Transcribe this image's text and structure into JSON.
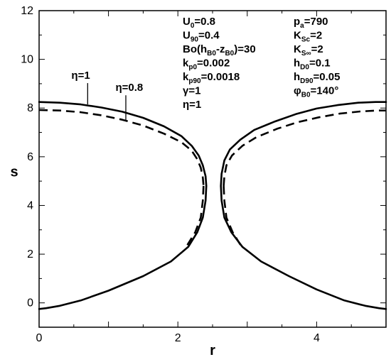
{
  "chart_data": {
    "type": "line",
    "xlabel": "r",
    "ylabel": "s",
    "xlim": [
      0,
      5
    ],
    "ylim": [
      -1,
      12
    ],
    "xticks": [
      0,
      2,
      4
    ],
    "yticks": [
      0,
      2,
      4,
      6,
      8,
      10,
      12
    ],
    "grid": false,
    "series": [
      {
        "name": "η=1",
        "style": "solid",
        "branches": [
          {
            "x": [
              0,
              0.3,
              0.6,
              0.9,
              1.2,
              1.5,
              1.8,
              2.05,
              2.2,
              2.3,
              2.36,
              2.4,
              2.41
            ],
            "y": [
              8.25,
              8.22,
              8.15,
              8.02,
              7.85,
              7.6,
              7.25,
              6.85,
              6.45,
              6.05,
              5.65,
              5.2,
              4.8
            ]
          },
          {
            "x": [
              2.41,
              2.4,
              2.36,
              2.28,
              2.15,
              1.9,
              1.5,
              1.0,
              0.6,
              0.3,
              0.1,
              0
            ],
            "y": [
              4.8,
              4.2,
              3.5,
              2.9,
              2.3,
              1.7,
              1.1,
              0.5,
              0.1,
              -0.12,
              -0.22,
              -0.25
            ]
          },
          {
            "x": [
              2.62,
              2.63,
              2.67,
              2.75,
              2.9,
              3.1,
              3.4,
              3.7,
              4.0,
              4.3,
              4.6,
              4.85,
              5.0
            ],
            "y": [
              4.8,
              5.3,
              5.85,
              6.3,
              6.7,
              7.1,
              7.45,
              7.75,
              7.98,
              8.12,
              8.22,
              8.25,
              8.25
            ]
          },
          {
            "x": [
              2.62,
              2.63,
              2.67,
              2.77,
              2.93,
              3.2,
              3.6,
              4.0,
              4.4,
              4.7,
              4.9,
              5.0
            ],
            "y": [
              4.8,
              4.2,
              3.5,
              2.9,
              2.3,
              1.7,
              1.1,
              0.55,
              0.1,
              -0.12,
              -0.22,
              -0.25
            ]
          }
        ]
      },
      {
        "name": "η=0.8",
        "style": "dashed",
        "branches": [
          {
            "x": [
              0,
              0.3,
              0.6,
              0.9,
              1.2,
              1.5,
              1.8,
              2.05,
              2.2,
              2.28,
              2.33,
              2.36,
              2.37
            ],
            "y": [
              7.92,
              7.9,
              7.83,
              7.7,
              7.52,
              7.28,
              6.95,
              6.6,
              6.25,
              5.9,
              5.55,
              5.15,
              4.8
            ]
          },
          {
            "x": [
              2.37,
              2.36,
              2.33,
              2.25,
              2.12
            ],
            "y": [
              4.8,
              4.2,
              3.5,
              2.9,
              2.3
            ]
          },
          {
            "x": [
              2.66,
              2.67,
              2.7,
              2.78,
              2.93,
              3.13,
              3.43,
              3.73,
              4.03,
              4.33,
              4.63,
              4.88,
              5.0
            ],
            "y": [
              4.8,
              5.2,
              5.65,
              6.05,
              6.45,
              6.8,
              7.15,
              7.42,
              7.62,
              7.77,
              7.86,
              7.9,
              7.9
            ]
          },
          {
            "x": [
              2.66,
              2.67,
              2.7,
              2.79,
              2.92
            ],
            "y": [
              4.8,
              4.2,
              3.5,
              2.9,
              2.3
            ]
          }
        ]
      }
    ],
    "annotations": [
      {
        "label": "η=1",
        "x": 0.6,
        "y": 9.2,
        "arrow_to": [
          0.7,
          8.15
        ]
      },
      {
        "label": "η=0.8",
        "x": 1.3,
        "y": 8.7,
        "arrow_to": [
          1.25,
          7.5
        ]
      }
    ],
    "parameter_box_left": [
      {
        "main": "U",
        "sub": "0",
        "rest": "=0.8"
      },
      {
        "main": "U",
        "sub": "90",
        "rest": "=0.4"
      },
      {
        "main": "Bo(h",
        "sub": "B0",
        "rest": "-z",
        "sub2": "B0",
        "rest2": ")=30"
      },
      {
        "main": "k",
        "sub": "p0",
        "rest": "=0.002"
      },
      {
        "main": "k",
        "sub": "p90",
        "rest": "=0.0018"
      },
      {
        "main": "γ=1"
      },
      {
        "main": "η=1"
      }
    ],
    "parameter_box_right": [
      {
        "main": "p",
        "sub": "a",
        "rest": "=790"
      },
      {
        "main": "K",
        "sub": "Sc",
        "rest": "=2"
      },
      {
        "main": "K",
        "sub": "S∞",
        "rest": "=2"
      },
      {
        "main": "h",
        "sub": "D0",
        "rest": "=0.1"
      },
      {
        "main": "h",
        "sub": "D90",
        "rest": "=0.05"
      },
      {
        "main": "φ",
        "sub": "B0",
        "rest": "=140°"
      }
    ]
  }
}
